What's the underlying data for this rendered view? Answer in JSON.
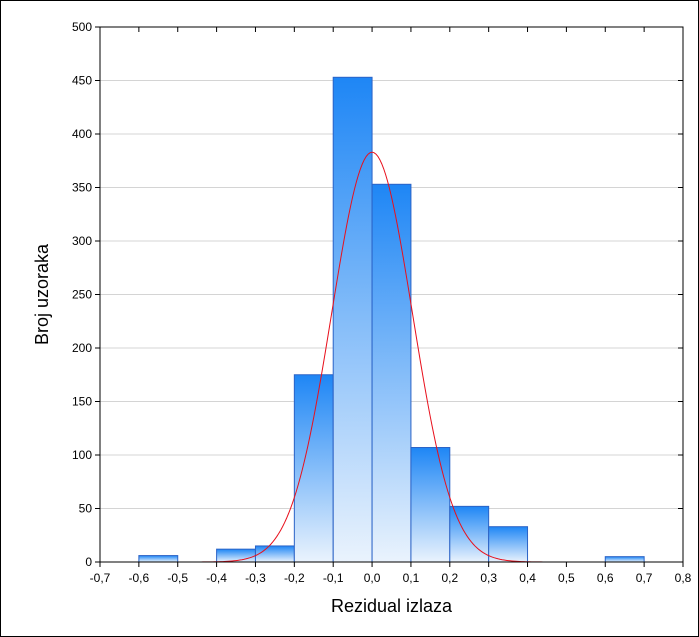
{
  "chart_data": {
    "type": "bar",
    "title": "",
    "xlabel": "Rezidual izlaza",
    "ylabel": "Broj uzoraka",
    "xlim": [
      -0.7,
      0.8
    ],
    "ylim": [
      0,
      500
    ],
    "x_ticks": [
      "-0,7",
      "-0,6",
      "-0,5",
      "-0,4",
      "-0,3",
      "-0,2",
      "-0,1",
      "0,0",
      "0,1",
      "0,2",
      "0,3",
      "0,4",
      "0,5",
      "0,6",
      "0,7",
      "0,8"
    ],
    "y_ticks": [
      "0",
      "50",
      "100",
      "150",
      "200",
      "250",
      "300",
      "350",
      "400",
      "450",
      "500"
    ],
    "grid": true,
    "bins": [
      {
        "from": -0.6,
        "to": -0.5,
        "value": 6
      },
      {
        "from": -0.5,
        "to": -0.4,
        "value": 0
      },
      {
        "from": -0.4,
        "to": -0.3,
        "value": 12
      },
      {
        "from": -0.3,
        "to": -0.2,
        "value": 15
      },
      {
        "from": -0.2,
        "to": -0.1,
        "value": 175
      },
      {
        "from": -0.1,
        "to": 0.0,
        "value": 453
      },
      {
        "from": 0.0,
        "to": 0.1,
        "value": 353
      },
      {
        "from": 0.1,
        "to": 0.2,
        "value": 107
      },
      {
        "from": 0.2,
        "to": 0.3,
        "value": 52
      },
      {
        "from": 0.3,
        "to": 0.4,
        "value": 33
      },
      {
        "from": 0.4,
        "to": 0.5,
        "value": 0
      },
      {
        "from": 0.5,
        "to": 0.6,
        "value": 0
      },
      {
        "from": 0.6,
        "to": 0.7,
        "value": 5
      }
    ],
    "normal_curve": {
      "mean": 0.0,
      "peak": 383,
      "sd": 0.104,
      "color": "#e8101c"
    },
    "colors": {
      "bar_top": "#1e86f5",
      "bar_bottom": "#eaf3fd",
      "bar_stroke": "#2b63c6",
      "grid": "#d4d4d4"
    }
  }
}
